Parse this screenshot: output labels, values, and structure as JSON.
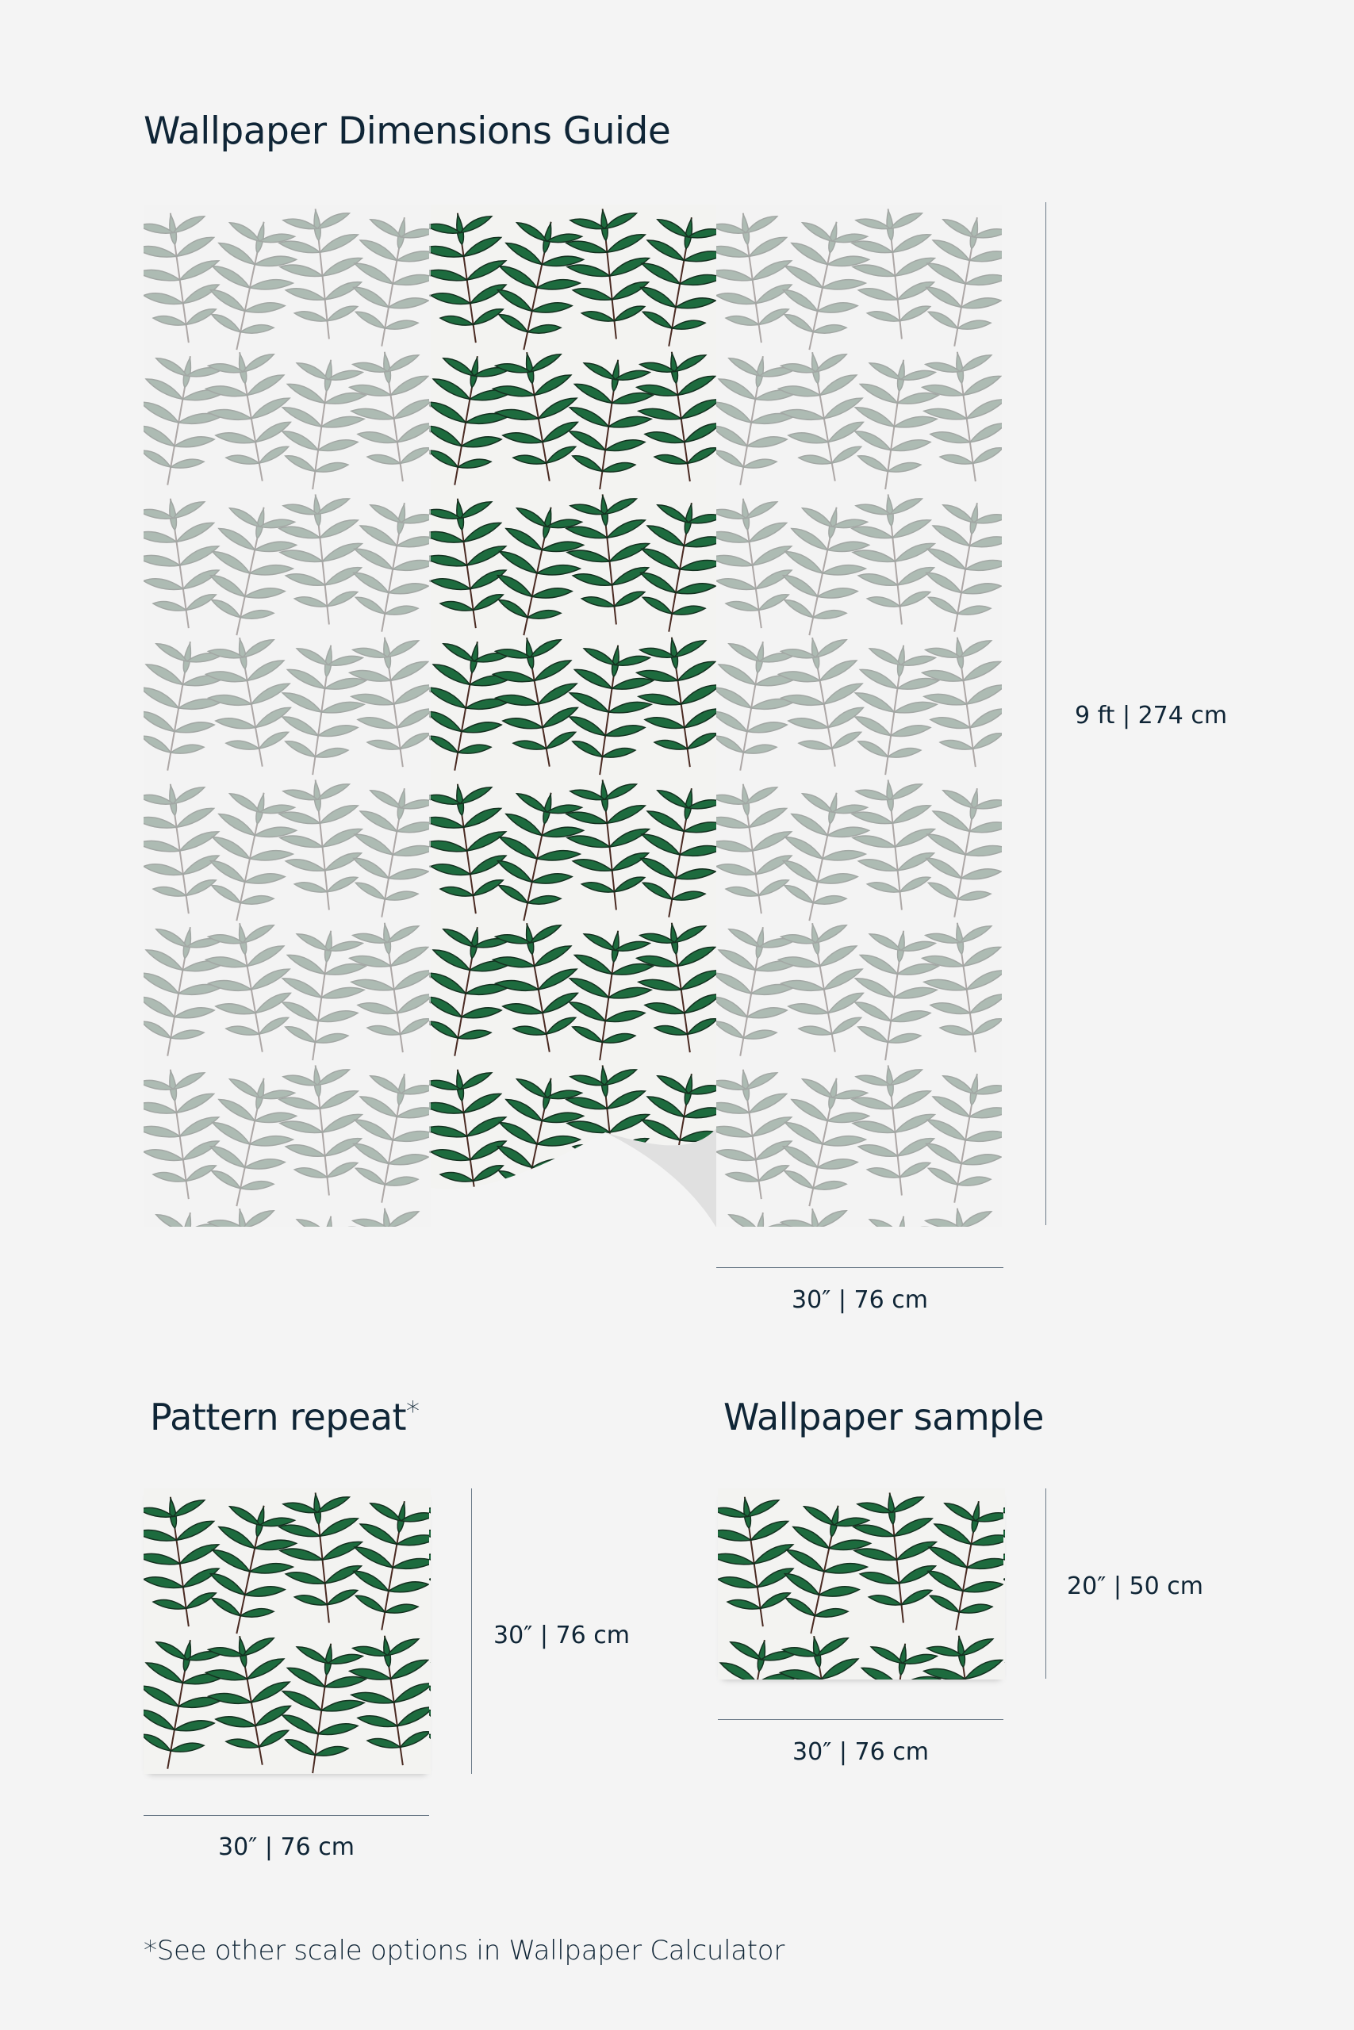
{
  "title": "Wallpaper Dimensions Guide",
  "main": {
    "height_label": "9 ft | 274 cm",
    "width_label": "30″ | 76 cm"
  },
  "pattern_repeat": {
    "heading": "Pattern repeat",
    "asterisk": "*",
    "height_label": "30″ | 76 cm",
    "width_label": "30″ | 76 cm"
  },
  "sample": {
    "heading": "Wallpaper sample",
    "height_label": "20″ | 50 cm",
    "width_label": "30″ | 76 cm"
  },
  "footnote": "*See other scale options in Wallpaper Calculator",
  "colors": {
    "text": "#0f2536",
    "leaf": "#1d6b3e",
    "stem": "#4a2a22",
    "background": "#f4f4f4"
  }
}
